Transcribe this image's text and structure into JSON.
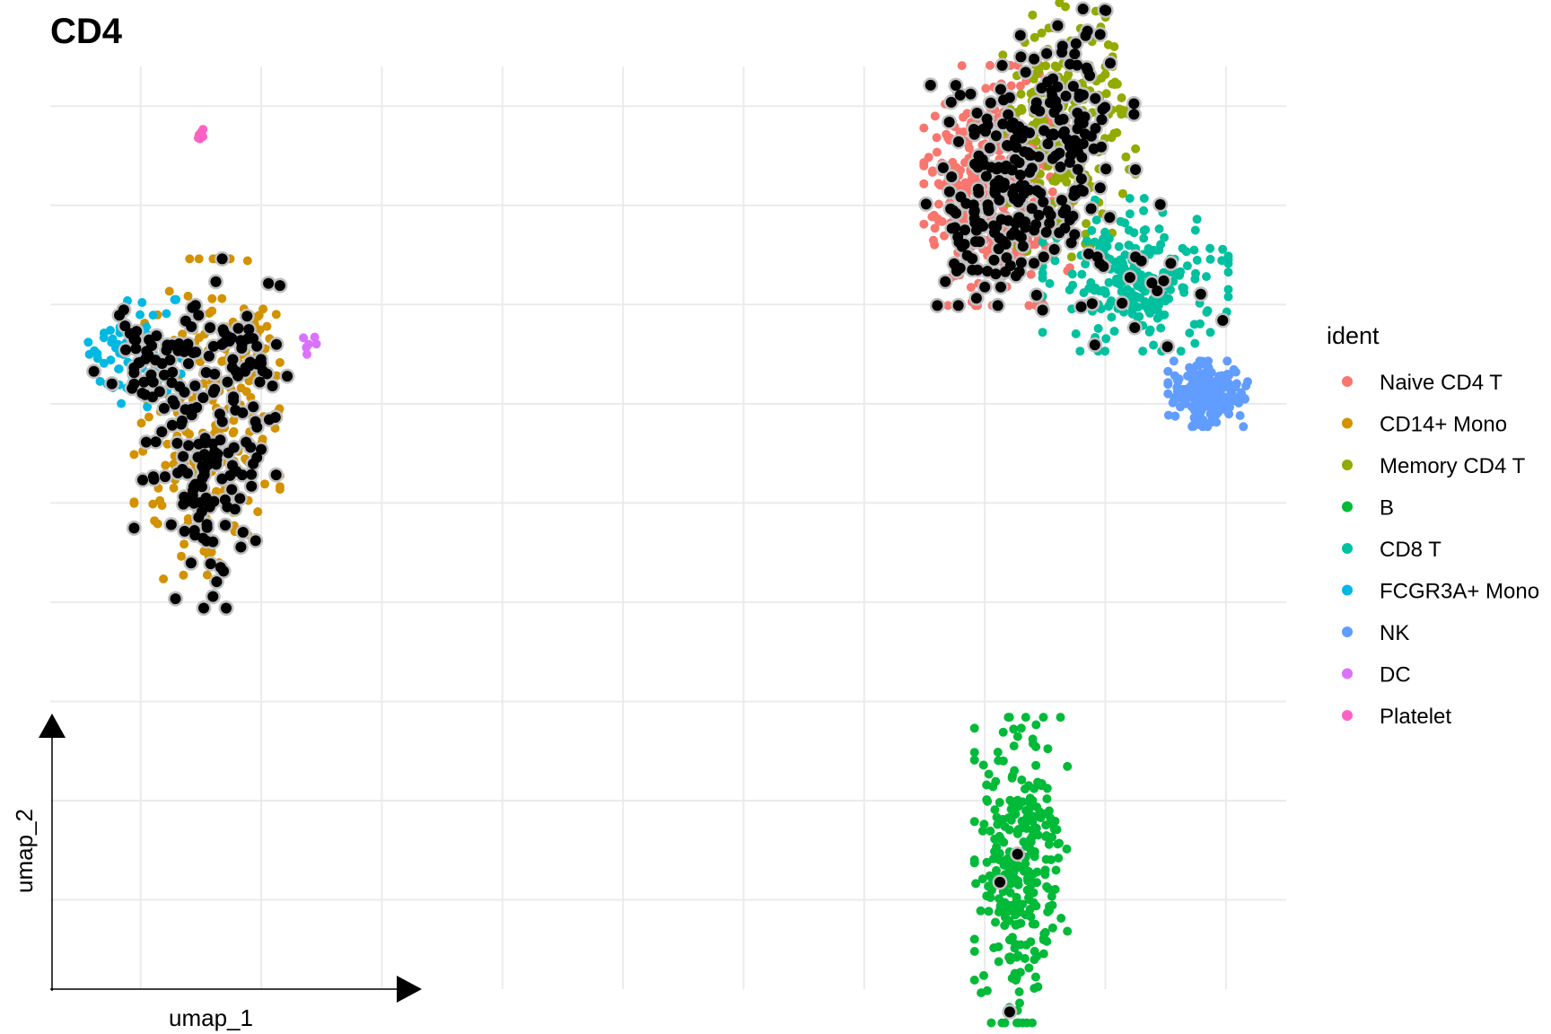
{
  "chart_data": {
    "type": "scatter",
    "title": "CD4",
    "xlabel": "umap_1",
    "ylabel": "umap_2",
    "grid": true,
    "legend": {
      "title": "ident",
      "placement": "right"
    },
    "highlight": {
      "name": "CD4-expressing cells",
      "color": "#000000",
      "outline": "#bfbfbf"
    },
    "series": [
      {
        "name": "Naive CD4 T",
        "color": "#F8766D",
        "clusters": [
          {
            "center": [
              4.2,
              3.2
            ],
            "spread": [
              0.55,
              0.55
            ],
            "n": 520
          }
        ]
      },
      {
        "name": "CD14+ Mono",
        "color": "#D39200",
        "clusters": [
          {
            "center": [
              -8.9,
              0.7
            ],
            "spread": [
              0.55,
              0.8
            ],
            "n": 360
          },
          {
            "center": [
              -8.3,
              1.5
            ],
            "spread": [
              0.35,
              0.25
            ],
            "n": 60
          }
        ]
      },
      {
        "name": "Memory CD4 T",
        "color": "#93AA00",
        "clusters": [
          {
            "center": [
              5.4,
              3.8
            ],
            "spread": [
              0.5,
              0.6
            ],
            "n": 360
          }
        ]
      },
      {
        "name": "B",
        "color": "#00BA38",
        "clusters": [
          {
            "center": [
              4.6,
              -3.7
            ],
            "spread": [
              0.35,
              0.7
            ],
            "n": 300
          }
        ]
      },
      {
        "name": "CD8 T",
        "color": "#00C19F",
        "clusters": [
          {
            "center": [
              6.5,
              2.3
            ],
            "spread": [
              0.7,
              0.35
            ],
            "n": 240
          }
        ]
      },
      {
        "name": "FCGR3A+ Mono",
        "color": "#00B9E3",
        "clusters": [
          {
            "center": [
              -10.1,
              1.5
            ],
            "spread": [
              0.35,
              0.25
            ],
            "n": 90
          }
        ]
      },
      {
        "name": "NK",
        "color": "#619CFF",
        "clusters": [
          {
            "center": [
              7.7,
              1.1
            ],
            "spread": [
              0.3,
              0.15
            ],
            "n": 220
          }
        ]
      },
      {
        "name": "DC",
        "color": "#DB72FB",
        "clusters": [
          {
            "center": [
              -7.3,
              1.6
            ],
            "spread": [
              0.1,
              0.05
            ],
            "n": 6
          }
        ]
      },
      {
        "name": "Platelet",
        "color": "#FF61C3",
        "clusters": [
          {
            "center": [
              -9.0,
              3.7
            ],
            "spread": [
              0.04,
              0.03
            ],
            "n": 10
          }
        ]
      }
    ],
    "xlim": [
      -11.5,
      9.0
    ],
    "ylim": [
      -4.9,
      4.4
    ]
  }
}
